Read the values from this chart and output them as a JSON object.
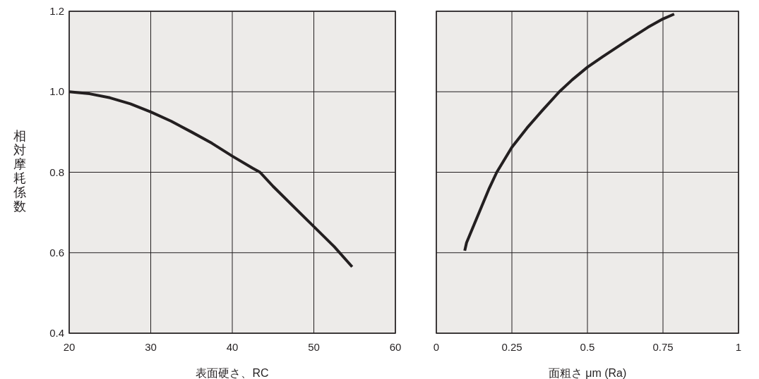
{
  "chart_data": [
    {
      "type": "line",
      "xlabel": "表面硬さ、RC",
      "ylabel": "相対摩耗係数",
      "xlim": [
        20,
        60
      ],
      "xticks": [
        20,
        30,
        40,
        50,
        60
      ],
      "ylim": [
        0.4,
        1.2
      ],
      "yticks": [
        0.4,
        0.6,
        0.8,
        {
          "value": 1.0,
          "label": "1.0"
        },
        1.2
      ],
      "grid": true,
      "series": [
        {
          "color": "#231f20",
          "x": [
            20,
            22.5,
            25,
            27.5,
            30,
            32.5,
            35,
            37.5,
            40,
            42.5,
            43.4,
            45,
            47.5,
            50,
            52.5,
            54.7
          ],
          "values": [
            1.0,
            0.995,
            0.985,
            0.97,
            0.95,
            0.927,
            0.9,
            0.872,
            0.84,
            0.81,
            0.8,
            0.765,
            0.715,
            0.665,
            0.615,
            0.565
          ]
        }
      ]
    },
    {
      "type": "line",
      "xlabel": "面粗さ μm (Ra)",
      "xlim": [
        0,
        1
      ],
      "xticks": [
        0,
        0.25,
        0.5,
        0.75,
        1
      ],
      "ylim": [
        0.4,
        1.2
      ],
      "yticks": [
        0.4,
        0.6,
        0.8,
        1,
        1.2
      ],
      "grid": true,
      "tick_labels": "x",
      "series": [
        {
          "color": "#231f20",
          "x": [
            0.094,
            0.1,
            0.125,
            0.15,
            0.175,
            0.2,
            0.25,
            0.3,
            0.35,
            0.407,
            0.45,
            0.5,
            0.55,
            0.625,
            0.7,
            0.75,
            0.787
          ],
          "values": [
            0.605,
            0.625,
            0.67,
            0.715,
            0.76,
            0.8,
            0.862,
            0.91,
            0.953,
            1.0,
            1.03,
            1.061,
            1.087,
            1.124,
            1.16,
            1.181,
            1.193
          ]
        }
      ]
    }
  ]
}
